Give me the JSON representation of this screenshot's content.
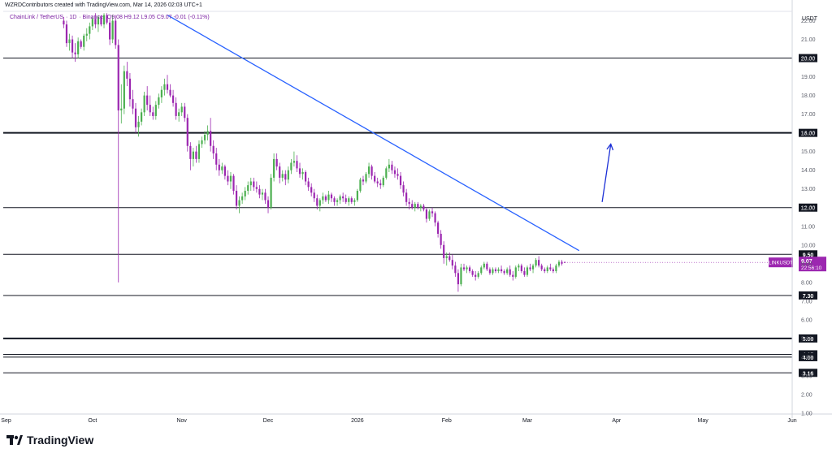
{
  "header": {
    "creator_line": "WZRDContributors created with TradingView.com, Mar 14, 2026 02:03 UTC+1",
    "pair": "ChainLink / TetherUS",
    "timeframe": "1D",
    "exchange": "Binance",
    "ohlc_text": "O9.08 H9.12 L9.05 C9.07 -0.01 (-0.11%)"
  },
  "axis_unit": "USDT",
  "price_tag": {
    "symbol": "LINKUSDT",
    "price": "9.07",
    "countdown": "22:56:10",
    "color": "#9c27b0"
  },
  "brand": {
    "name": "TradingView"
  },
  "colors": {
    "up": "#4caf50",
    "down": "#9c27b0",
    "trendline": "#2962ff",
    "arrow": "#1a2ed6",
    "level_line": "#131722"
  },
  "chart_data": {
    "type": "candlestick",
    "ylim": [
      1.0,
      22.5
    ],
    "y_ticks": [
      1,
      2,
      3,
      4,
      5,
      6,
      7,
      8,
      9,
      10,
      11,
      12,
      13,
      14,
      15,
      16,
      17,
      18,
      19,
      20,
      21,
      22
    ],
    "y_tick_labels": [
      "1.00",
      "2.00",
      "3.00",
      "4.00",
      "5.00",
      "6.00",
      "7.00",
      "8.00",
      "9.00",
      "10.00",
      "11.00",
      "12.00",
      "13.00",
      "14.00",
      "15.00",
      "16.00",
      "17.00",
      "18.00",
      "19.00",
      "20.00",
      "21.00",
      "22.00"
    ],
    "x_ticks": [
      {
        "label": "Sep",
        "date": "2025-09-01"
      },
      {
        "label": "Oct",
        "date": "2025-10-01"
      },
      {
        "label": "Nov",
        "date": "2025-11-01"
      },
      {
        "label": "Dec",
        "date": "2025-12-01"
      },
      {
        "label": "2026",
        "date": "2026-01-01"
      },
      {
        "label": "Feb",
        "date": "2026-02-01"
      },
      {
        "label": "Mar",
        "date": "2026-03-01"
      },
      {
        "label": "Apr",
        "date": "2026-04-01"
      },
      {
        "label": "May",
        "date": "2026-05-01"
      },
      {
        "label": "Jun",
        "date": "2026-06-01"
      }
    ],
    "xlim": [
      "2025-08-31",
      "2026-06-01"
    ],
    "horizontal_levels": [
      {
        "value": 20.0,
        "label": "20.00",
        "weight": 1
      },
      {
        "value": 16.0,
        "label": "16.00",
        "weight": 2
      },
      {
        "value": 12.0,
        "label": "12.00",
        "weight": 1
      },
      {
        "value": 9.5,
        "label": "9.50",
        "weight": 1
      },
      {
        "value": 7.3,
        "label": "7.30",
        "weight": 1
      },
      {
        "value": 5.0,
        "label": "5.00",
        "weight": 2
      },
      {
        "value": 4.15,
        "label": "4.15",
        "weight": 1
      },
      {
        "value": 4.0,
        "label": "4.00",
        "weight": 1
      },
      {
        "value": 3.16,
        "label": "3.16",
        "weight": 1
      }
    ],
    "trendline": {
      "x1": "2025-10-27",
      "y1": 22.3,
      "x2": "2026-03-19",
      "y2": 9.7
    },
    "arrow": {
      "x1": "2026-03-27",
      "y1": 12.3,
      "x2": "2026-03-30",
      "y2": 15.4
    },
    "candles": [
      [
        "2025-09-21",
        22.0,
        22.2,
        21.6,
        21.8
      ],
      [
        "2025-09-22",
        21.8,
        22.0,
        20.6,
        20.8
      ],
      [
        "2025-09-23",
        20.8,
        21.3,
        20.4,
        21.0
      ],
      [
        "2025-09-24",
        21.0,
        21.2,
        20.0,
        20.3
      ],
      [
        "2025-09-25",
        20.3,
        20.8,
        19.8,
        20.2
      ],
      [
        "2025-09-26",
        20.2,
        21.1,
        20.0,
        20.9
      ],
      [
        "2025-09-27",
        20.9,
        21.0,
        20.5,
        20.6
      ],
      [
        "2025-09-28",
        20.6,
        21.3,
        20.4,
        21.2
      ],
      [
        "2025-09-29",
        21.2,
        21.6,
        20.9,
        21.3
      ],
      [
        "2025-09-30",
        21.3,
        21.9,
        21.0,
        21.7
      ],
      [
        "2025-10-01",
        21.7,
        22.2,
        21.5,
        22.1
      ],
      [
        "2025-10-02",
        22.1,
        22.4,
        21.6,
        21.8
      ],
      [
        "2025-10-03",
        21.8,
        22.3,
        21.4,
        22.2
      ],
      [
        "2025-10-04",
        22.2,
        22.3,
        21.7,
        21.8
      ],
      [
        "2025-10-05",
        21.8,
        22.4,
        21.6,
        22.3
      ],
      [
        "2025-10-06",
        22.3,
        22.4,
        21.8,
        21.9
      ],
      [
        "2025-10-07",
        21.9,
        22.1,
        20.7,
        21.0
      ],
      [
        "2025-10-08",
        21.0,
        22.3,
        20.8,
        22.0
      ],
      [
        "2025-10-09",
        22.0,
        22.3,
        20.5,
        20.7
      ],
      [
        "2025-10-10",
        20.7,
        21.0,
        8.0,
        17.2
      ],
      [
        "2025-10-11",
        17.2,
        18.6,
        16.5,
        17.3
      ],
      [
        "2025-10-12",
        17.3,
        19.6,
        17.0,
        19.3
      ],
      [
        "2025-10-13",
        19.3,
        19.8,
        18.5,
        18.9
      ],
      [
        "2025-10-14",
        18.9,
        19.2,
        17.4,
        17.8
      ],
      [
        "2025-10-15",
        17.8,
        18.3,
        17.0,
        17.3
      ],
      [
        "2025-10-16",
        17.3,
        17.6,
        16.0,
        16.3
      ],
      [
        "2025-10-17",
        16.3,
        16.9,
        15.8,
        16.6
      ],
      [
        "2025-10-18",
        16.6,
        17.3,
        16.4,
        17.1
      ],
      [
        "2025-10-19",
        17.1,
        18.2,
        16.9,
        18.0
      ],
      [
        "2025-10-20",
        18.0,
        18.5,
        17.2,
        17.5
      ],
      [
        "2025-10-21",
        17.5,
        18.0,
        16.9,
        17.1
      ],
      [
        "2025-10-22",
        17.1,
        17.4,
        16.7,
        16.9
      ],
      [
        "2025-10-23",
        16.9,
        17.7,
        16.7,
        17.5
      ],
      [
        "2025-10-24",
        17.5,
        18.1,
        17.3,
        17.9
      ],
      [
        "2025-10-25",
        17.9,
        18.5,
        17.6,
        18.3
      ],
      [
        "2025-10-26",
        18.3,
        18.9,
        18.0,
        18.6
      ],
      [
        "2025-10-27",
        18.6,
        19.1,
        18.1,
        18.3
      ],
      [
        "2025-10-28",
        18.3,
        18.6,
        17.9,
        18.0
      ],
      [
        "2025-10-29",
        18.0,
        18.3,
        17.4,
        17.6
      ],
      [
        "2025-10-30",
        17.6,
        17.9,
        16.7,
        16.9
      ],
      [
        "2025-10-31",
        16.9,
        17.3,
        16.6,
        17.1
      ],
      [
        "2025-11-01",
        17.1,
        17.6,
        16.9,
        17.4
      ],
      [
        "2025-11-02",
        17.4,
        17.6,
        16.6,
        16.8
      ],
      [
        "2025-11-03",
        16.8,
        17.0,
        15.0,
        15.3
      ],
      [
        "2025-11-04",
        15.3,
        15.5,
        14.0,
        14.6
      ],
      [
        "2025-11-05",
        14.6,
        15.2,
        14.2,
        15.0
      ],
      [
        "2025-11-06",
        15.0,
        15.3,
        14.4,
        14.6
      ],
      [
        "2025-11-07",
        14.6,
        15.6,
        14.4,
        15.4
      ],
      [
        "2025-11-08",
        15.4,
        15.8,
        15.2,
        15.6
      ],
      [
        "2025-11-09",
        15.6,
        16.1,
        15.4,
        15.9
      ],
      [
        "2025-11-10",
        15.9,
        16.4,
        15.6,
        16.1
      ],
      [
        "2025-11-11",
        16.1,
        16.8,
        15.0,
        15.3
      ],
      [
        "2025-11-12",
        15.3,
        15.6,
        14.6,
        14.9
      ],
      [
        "2025-11-13",
        14.9,
        15.2,
        14.0,
        14.3
      ],
      [
        "2025-11-14",
        14.3,
        14.6,
        13.7,
        14.0
      ],
      [
        "2025-11-15",
        14.0,
        14.4,
        13.8,
        14.2
      ],
      [
        "2025-11-16",
        14.2,
        14.3,
        13.5,
        13.7
      ],
      [
        "2025-11-17",
        13.7,
        14.0,
        13.2,
        13.4
      ],
      [
        "2025-11-18",
        13.4,
        13.9,
        13.0,
        13.7
      ],
      [
        "2025-11-19",
        13.7,
        13.8,
        12.7,
        12.9
      ],
      [
        "2025-11-20",
        12.9,
        13.2,
        11.9,
        12.1
      ],
      [
        "2025-11-21",
        12.1,
        12.6,
        11.7,
        12.4
      ],
      [
        "2025-11-22",
        12.4,
        12.8,
        12.2,
        12.6
      ],
      [
        "2025-11-23",
        12.6,
        13.1,
        12.4,
        12.9
      ],
      [
        "2025-11-24",
        12.9,
        13.4,
        12.7,
        13.2
      ],
      [
        "2025-11-25",
        13.2,
        13.6,
        12.9,
        13.4
      ],
      [
        "2025-11-26",
        13.4,
        13.6,
        12.9,
        13.1
      ],
      [
        "2025-11-27",
        13.1,
        13.4,
        12.8,
        13.0
      ],
      [
        "2025-11-28",
        13.0,
        13.2,
        12.5,
        12.7
      ],
      [
        "2025-11-29",
        12.7,
        13.0,
        12.4,
        12.8
      ],
      [
        "2025-11-30",
        12.8,
        13.0,
        12.2,
        12.4
      ],
      [
        "2025-12-01",
        12.4,
        12.6,
        11.7,
        12.0
      ],
      [
        "2025-12-02",
        12.0,
        13.8,
        11.9,
        13.6
      ],
      [
        "2025-12-03",
        13.6,
        14.9,
        13.4,
        14.6
      ],
      [
        "2025-12-04",
        14.6,
        14.9,
        14.0,
        14.2
      ],
      [
        "2025-12-05",
        14.2,
        14.4,
        13.3,
        13.6
      ],
      [
        "2025-12-06",
        13.6,
        14.0,
        13.4,
        13.8
      ],
      [
        "2025-12-07",
        13.8,
        14.0,
        13.2,
        13.5
      ],
      [
        "2025-12-08",
        13.5,
        14.2,
        13.3,
        14.0
      ],
      [
        "2025-12-09",
        14.0,
        14.6,
        13.8,
        14.4
      ],
      [
        "2025-12-10",
        14.4,
        15.0,
        14.2,
        14.5
      ],
      [
        "2025-12-11",
        14.5,
        14.8,
        13.9,
        14.1
      ],
      [
        "2025-12-12",
        14.1,
        14.4,
        13.6,
        13.8
      ],
      [
        "2025-12-13",
        13.8,
        14.1,
        13.5,
        13.9
      ],
      [
        "2025-12-14",
        13.9,
        14.0,
        13.2,
        13.4
      ],
      [
        "2025-12-15",
        13.4,
        13.6,
        12.9,
        13.1
      ],
      [
        "2025-12-16",
        13.1,
        13.3,
        12.6,
        12.8
      ],
      [
        "2025-12-17",
        12.8,
        13.0,
        12.3,
        12.5
      ],
      [
        "2025-12-18",
        12.5,
        12.7,
        11.9,
        12.1
      ],
      [
        "2025-12-19",
        12.1,
        12.5,
        11.8,
        12.4
      ],
      [
        "2025-12-20",
        12.4,
        12.8,
        12.2,
        12.6
      ],
      [
        "2025-12-21",
        12.6,
        12.7,
        12.3,
        12.4
      ],
      [
        "2025-12-22",
        12.4,
        12.9,
        12.2,
        12.7
      ],
      [
        "2025-12-23",
        12.7,
        12.8,
        12.3,
        12.5
      ],
      [
        "2025-12-24",
        12.5,
        12.6,
        12.1,
        12.3
      ],
      [
        "2025-12-25",
        12.3,
        12.5,
        12.1,
        12.4
      ],
      [
        "2025-12-26",
        12.4,
        12.7,
        12.2,
        12.6
      ],
      [
        "2025-12-27",
        12.6,
        12.8,
        12.3,
        12.5
      ],
      [
        "2025-12-28",
        12.5,
        12.7,
        12.2,
        12.3
      ],
      [
        "2025-12-29",
        12.3,
        12.6,
        12.1,
        12.5
      ],
      [
        "2025-12-30",
        12.5,
        12.6,
        12.2,
        12.3
      ],
      [
        "2025-12-31",
        12.3,
        12.5,
        12.1,
        12.4
      ],
      [
        "2026-01-01",
        12.4,
        13.0,
        12.3,
        12.9
      ],
      [
        "2026-01-02",
        12.9,
        13.6,
        12.8,
        13.5
      ],
      [
        "2026-01-03",
        13.5,
        13.7,
        13.2,
        13.4
      ],
      [
        "2026-01-04",
        13.4,
        13.9,
        13.3,
        13.8
      ],
      [
        "2026-01-05",
        13.8,
        14.4,
        13.6,
        14.2
      ],
      [
        "2026-01-06",
        14.2,
        14.3,
        13.5,
        13.7
      ],
      [
        "2026-01-07",
        13.7,
        13.9,
        13.3,
        13.4
      ],
      [
        "2026-01-08",
        13.4,
        13.6,
        13.1,
        13.3
      ],
      [
        "2026-01-09",
        13.3,
        13.5,
        13.0,
        13.2
      ],
      [
        "2026-01-10",
        13.2,
        13.7,
        13.1,
        13.6
      ],
      [
        "2026-01-11",
        13.6,
        14.2,
        13.5,
        14.1
      ],
      [
        "2026-01-12",
        14.1,
        14.6,
        13.9,
        14.3
      ],
      [
        "2026-01-13",
        14.3,
        14.5,
        13.8,
        14.0
      ],
      [
        "2026-01-14",
        14.0,
        14.2,
        13.6,
        13.8
      ],
      [
        "2026-01-15",
        13.8,
        14.1,
        13.5,
        13.7
      ],
      [
        "2026-01-16",
        13.7,
        13.9,
        13.0,
        13.2
      ],
      [
        "2026-01-17",
        13.2,
        13.4,
        12.6,
        12.8
      ],
      [
        "2026-01-18",
        12.8,
        13.0,
        12.1,
        12.3
      ],
      [
        "2026-01-19",
        12.3,
        12.5,
        11.9,
        12.2
      ],
      [
        "2026-01-20",
        12.2,
        12.4,
        11.9,
        12.0
      ],
      [
        "2026-01-21",
        12.0,
        12.3,
        11.8,
        12.2
      ],
      [
        "2026-01-22",
        12.2,
        12.3,
        11.9,
        12.0
      ],
      [
        "2026-01-23",
        12.0,
        12.2,
        11.8,
        12.1
      ],
      [
        "2026-01-24",
        12.1,
        12.2,
        11.8,
        11.9
      ],
      [
        "2026-01-25",
        11.9,
        12.0,
        11.2,
        11.4
      ],
      [
        "2026-01-26",
        11.4,
        11.9,
        11.3,
        11.8
      ],
      [
        "2026-01-27",
        11.8,
        12.0,
        11.5,
        11.7
      ],
      [
        "2026-01-28",
        11.7,
        11.8,
        11.0,
        11.2
      ],
      [
        "2026-01-29",
        11.2,
        11.3,
        10.4,
        10.6
      ],
      [
        "2026-01-30",
        10.6,
        10.8,
        9.8,
        10.0
      ],
      [
        "2026-01-31",
        10.0,
        10.2,
        9.0,
        9.3
      ],
      [
        "2026-02-01",
        9.3,
        9.6,
        8.9,
        9.4
      ],
      [
        "2026-02-02",
        9.4,
        9.6,
        9.1,
        9.2
      ],
      [
        "2026-02-03",
        9.2,
        9.5,
        8.7,
        8.9
      ],
      [
        "2026-02-04",
        8.9,
        9.1,
        8.3,
        8.5
      ],
      [
        "2026-02-05",
        8.5,
        8.7,
        7.5,
        7.9
      ],
      [
        "2026-02-06",
        7.9,
        9.0,
        7.8,
        8.8
      ],
      [
        "2026-02-07",
        8.8,
        9.0,
        8.6,
        8.7
      ],
      [
        "2026-02-08",
        8.7,
        8.9,
        8.5,
        8.8
      ],
      [
        "2026-02-09",
        8.8,
        8.9,
        8.5,
        8.6
      ],
      [
        "2026-02-10",
        8.6,
        8.7,
        8.3,
        8.4
      ],
      [
        "2026-02-11",
        8.4,
        8.6,
        8.1,
        8.3
      ],
      [
        "2026-02-12",
        8.3,
        8.6,
        8.2,
        8.5
      ],
      [
        "2026-02-13",
        8.5,
        8.9,
        8.4,
        8.8
      ],
      [
        "2026-02-14",
        8.8,
        9.1,
        8.7,
        9.0
      ],
      [
        "2026-02-15",
        9.0,
        9.1,
        8.6,
        8.7
      ],
      [
        "2026-02-16",
        8.7,
        8.8,
        8.4,
        8.5
      ],
      [
        "2026-02-17",
        8.5,
        8.8,
        8.4,
        8.7
      ],
      [
        "2026-02-18",
        8.7,
        8.8,
        8.5,
        8.6
      ],
      [
        "2026-02-19",
        8.6,
        8.8,
        8.5,
        8.7
      ],
      [
        "2026-02-20",
        8.7,
        8.9,
        8.5,
        8.6
      ],
      [
        "2026-02-21",
        8.6,
        8.7,
        8.4,
        8.5
      ],
      [
        "2026-02-22",
        8.5,
        8.8,
        8.4,
        8.7
      ],
      [
        "2026-02-23",
        8.7,
        8.9,
        8.3,
        8.4
      ],
      [
        "2026-02-24",
        8.4,
        8.6,
        8.1,
        8.3
      ],
      [
        "2026-02-25",
        8.3,
        8.9,
        8.2,
        8.8
      ],
      [
        "2026-02-26",
        8.8,
        9.0,
        8.6,
        8.9
      ],
      [
        "2026-02-27",
        8.9,
        9.0,
        8.5,
        8.6
      ],
      [
        "2026-02-28",
        8.6,
        8.8,
        8.3,
        8.4
      ],
      [
        "2026-03-01",
        8.4,
        8.9,
        8.3,
        8.8
      ],
      [
        "2026-03-02",
        8.8,
        9.0,
        8.6,
        8.7
      ],
      [
        "2026-03-03",
        8.7,
        9.0,
        8.5,
        8.9
      ],
      [
        "2026-03-04",
        8.9,
        9.3,
        8.8,
        9.2
      ],
      [
        "2026-03-05",
        9.2,
        9.4,
        8.8,
        8.9
      ],
      [
        "2026-03-06",
        8.9,
        9.0,
        8.6,
        8.7
      ],
      [
        "2026-03-07",
        8.7,
        8.8,
        8.5,
        8.6
      ],
      [
        "2026-03-08",
        8.6,
        8.9,
        8.5,
        8.8
      ],
      [
        "2026-03-09",
        8.8,
        9.0,
        8.6,
        8.7
      ],
      [
        "2026-03-10",
        8.7,
        8.8,
        8.5,
        8.6
      ],
      [
        "2026-03-11",
        8.6,
        9.0,
        8.5,
        8.9
      ],
      [
        "2026-03-12",
        8.9,
        9.2,
        8.8,
        9.1
      ],
      [
        "2026-03-13",
        9.1,
        9.2,
        8.9,
        9.0
      ],
      [
        "2026-03-14",
        9.08,
        9.12,
        9.05,
        9.07
      ]
    ]
  }
}
